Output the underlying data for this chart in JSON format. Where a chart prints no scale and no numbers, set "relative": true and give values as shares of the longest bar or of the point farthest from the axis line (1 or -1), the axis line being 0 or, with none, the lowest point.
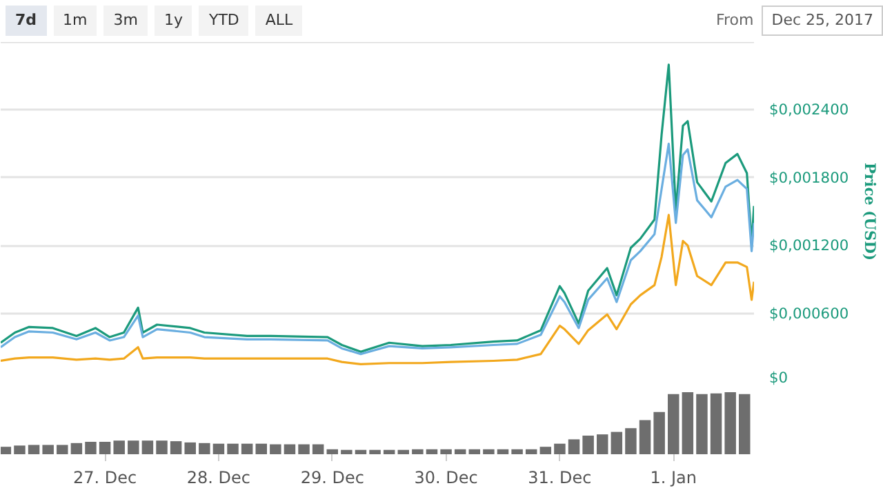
{
  "chart_data": [
    {
      "type": "line",
      "ylabel": "Price (USD)",
      "annotations": [
        "7d",
        "1m",
        "3m",
        "1y",
        "YTD",
        "ALL",
        "From",
        "Dec 25, 2017"
      ],
      "x": [
        "2017-12-26T02:00",
        "2017-12-26T05:00",
        "2017-12-26T08:00",
        "2017-12-26T13:00",
        "2017-12-26T18:00",
        "2017-12-26T22:00",
        "2017-12-27T01:00",
        "2017-12-27T04:00",
        "2017-12-27T07:00",
        "2017-12-27T08:00",
        "2017-12-27T11:00",
        "2017-12-27T18:00",
        "2017-12-27T21:00",
        "2017-12-28T06:00",
        "2017-12-28T11:00",
        "2017-12-28T23:00",
        "2017-12-29T02:00",
        "2017-12-29T06:00",
        "2017-12-29T12:00",
        "2017-12-29T19:00",
        "2017-12-30T01:00",
        "2017-12-30T10:00",
        "2017-12-30T15:00",
        "2017-12-30T20:00",
        "2017-12-31T00:00",
        "2017-12-31T01:00",
        "2017-12-31T04:00",
        "2017-12-31T06:00",
        "2017-12-31T10:00",
        "2017-12-31T12:00",
        "2017-12-31T15:00",
        "2017-12-31T17:00",
        "2017-12-31T20:00",
        "2017-12-31T21:30",
        "2017-12-31T23:00",
        "2018-01-01T00:30",
        "2018-01-01T02:00",
        "2018-01-01T03:00",
        "2018-01-01T05:00",
        "2018-01-01T08:00",
        "2018-01-01T11:00",
        "2018-01-01T13:30",
        "2018-01-01T15:30",
        "2018-01-01T16:30",
        "2018-01-01T17:00"
      ],
      "series": [
        {
          "color": "#1b9a7c",
          "values": [
            0.00034,
            0.00043,
            0.00048,
            0.00047,
            0.0004,
            0.00047,
            0.00039,
            0.00043,
            0.00065,
            0.00043,
            0.0005,
            0.00047,
            0.00043,
            0.0004,
            0.0004,
            0.00039,
            0.00032,
            0.00026,
            0.00034,
            0.00031,
            0.00032,
            0.00035,
            0.00036,
            0.00045,
            0.00084,
            0.00078,
            0.00051,
            0.0008,
            0.001,
            0.00076,
            0.00118,
            0.00126,
            0.00143,
            0.00218,
            0.0028,
            0.00151,
            0.00226,
            0.0023,
            0.00176,
            0.00159,
            0.00193,
            0.00201,
            0.00184,
            0.00122,
            0.00155
          ]
        },
        {
          "color": "#6aaee0",
          "values": [
            0.0003,
            0.00039,
            0.00044,
            0.00043,
            0.00037,
            0.00043,
            0.00036,
            0.00039,
            0.00058,
            0.00039,
            0.00046,
            0.00043,
            0.00039,
            0.00037,
            0.00037,
            0.00036,
            0.00029,
            0.00024,
            0.00031,
            0.00029,
            0.0003,
            0.00032,
            0.00033,
            0.00041,
            0.00075,
            0.0007,
            0.00047,
            0.00072,
            0.00091,
            0.0007,
            0.00107,
            0.00115,
            0.0013,
            0.0017,
            0.0021,
            0.0014,
            0.002,
            0.00205,
            0.0016,
            0.00145,
            0.00172,
            0.00178,
            0.0017,
            0.00115,
            0.0014
          ]
        },
        {
          "color": "#f2a81d",
          "values": [
            0.00018,
            0.0002,
            0.00021,
            0.00021,
            0.00019,
            0.0002,
            0.00019,
            0.0002,
            0.0003,
            0.0002,
            0.00021,
            0.00021,
            0.0002,
            0.0002,
            0.0002,
            0.0002,
            0.00017,
            0.00015,
            0.00016,
            0.00016,
            0.00017,
            0.00018,
            0.00019,
            0.00024,
            0.00049,
            0.00046,
            0.00033,
            0.00045,
            0.00059,
            0.00046,
            0.00068,
            0.00076,
            0.00085,
            0.0011,
            0.00147,
            0.00085,
            0.00124,
            0.0012,
            0.00093,
            0.00085,
            0.00105,
            0.00105,
            0.00101,
            0.00072,
            0.00088
          ]
        }
      ],
      "xlim": [
        "2017-12-26T02:00",
        "2018-01-01T17:00"
      ],
      "ylim": [
        0,
        0.003
      ],
      "yticks": [
        {
          "value": 0,
          "label": "$0"
        },
        {
          "value": 0.0006,
          "label": "$0,000600"
        },
        {
          "value": 0.0012,
          "label": "$0,001200"
        },
        {
          "value": 0.0018,
          "label": "$0,001800"
        },
        {
          "value": 0.0024,
          "label": "$0,002400"
        }
      ],
      "grid": "y",
      "tick_labels": "y",
      "marker": "none",
      "line_style": "solid"
    },
    {
      "type": "bar",
      "relative": true,
      "color": "#6e6e6e",
      "x": [
        "2017-12-26T03:00",
        "2017-12-26T06:00",
        "2017-12-26T09:00",
        "2017-12-26T12:00",
        "2017-12-26T15:00",
        "2017-12-26T18:00",
        "2017-12-26T21:00",
        "2017-12-27T00:00",
        "2017-12-27T03:00",
        "2017-12-27T06:00",
        "2017-12-27T09:00",
        "2017-12-27T12:00",
        "2017-12-27T15:00",
        "2017-12-27T18:00",
        "2017-12-27T21:00",
        "2017-12-28T00:00",
        "2017-12-28T03:00",
        "2017-12-28T06:00",
        "2017-12-28T09:00",
        "2017-12-28T12:00",
        "2017-12-28T15:00",
        "2017-12-28T18:00",
        "2017-12-28T21:00",
        "2017-12-29T00:00",
        "2017-12-29T03:00",
        "2017-12-29T06:00",
        "2017-12-29T09:00",
        "2017-12-29T12:00",
        "2017-12-29T15:00",
        "2017-12-29T18:00",
        "2017-12-29T21:00",
        "2017-12-30T00:00",
        "2017-12-30T03:00",
        "2017-12-30T06:00",
        "2017-12-30T09:00",
        "2017-12-30T12:00",
        "2017-12-30T15:00",
        "2017-12-30T18:00",
        "2017-12-30T21:00",
        "2017-12-31T00:00",
        "2017-12-31T03:00",
        "2017-12-31T06:00",
        "2017-12-31T09:00",
        "2017-12-31T12:00",
        "2017-12-31T15:00",
        "2017-12-31T18:00",
        "2017-12-31T21:00",
        "2018-01-01T00:00",
        "2018-01-01T03:00",
        "2018-01-01T06:00",
        "2018-01-01T09:00",
        "2018-01-01T12:00",
        "2018-01-01T15:00"
      ],
      "values": [
        0.12,
        0.14,
        0.15,
        0.15,
        0.15,
        0.18,
        0.2,
        0.2,
        0.22,
        0.22,
        0.22,
        0.22,
        0.21,
        0.19,
        0.18,
        0.17,
        0.17,
        0.17,
        0.17,
        0.16,
        0.16,
        0.16,
        0.16,
        0.08,
        0.07,
        0.07,
        0.07,
        0.07,
        0.07,
        0.08,
        0.08,
        0.08,
        0.08,
        0.08,
        0.08,
        0.08,
        0.08,
        0.08,
        0.12,
        0.17,
        0.24,
        0.3,
        0.32,
        0.36,
        0.42,
        0.55,
        0.68,
        0.97,
        1.0,
        0.97,
        0.98,
        1.0,
        0.97
      ],
      "xlim": [
        "2017-12-26T02:00",
        "2018-01-01T17:00"
      ],
      "xticks": [
        {
          "value": "2017-12-27",
          "label": "27. Dec"
        },
        {
          "value": "2017-12-28",
          "label": "28. Dec"
        },
        {
          "value": "2017-12-29",
          "label": "29. Dec"
        },
        {
          "value": "2017-12-30",
          "label": "30. Dec"
        },
        {
          "value": "2017-12-31",
          "label": "31. Dec"
        },
        {
          "value": "2018-01-01",
          "label": "1. Jan"
        }
      ],
      "tick_labels": "x",
      "grid": false
    }
  ]
}
